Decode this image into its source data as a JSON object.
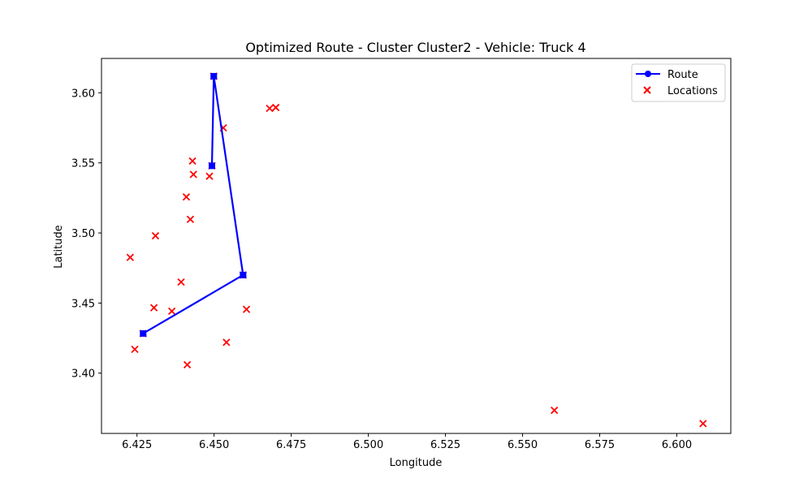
{
  "chart_data": {
    "type": "scatter",
    "title": "Optimized Route - Cluster Cluster2 - Vehicle: Truck 4",
    "xlabel": "Longitude",
    "ylabel": "Latitude",
    "xlim": [
      6.4135,
      6.6175
    ],
    "ylim": [
      3.357,
      3.6245
    ],
    "xticks": [
      "6.425",
      "6.450",
      "6.475",
      "6.500",
      "6.525",
      "6.550",
      "6.575",
      "6.600"
    ],
    "yticks": [
      "3.40",
      "3.45",
      "3.50",
      "3.55",
      "3.60"
    ],
    "grid": false,
    "legend_position": "top-right",
    "colors": {
      "route": "#0000ff",
      "locations": "#ff0000"
    },
    "series": [
      {
        "name": "Route",
        "kind": "line",
        "marker": "circle",
        "points": [
          [
            6.4493,
            3.5479
          ],
          [
            6.4499,
            3.6118
          ],
          [
            6.4594,
            3.47
          ],
          [
            6.427,
            3.4283
          ]
        ]
      },
      {
        "name": "Locations",
        "kind": "scatter",
        "marker": "x",
        "points": [
          [
            6.4499,
            3.6118
          ],
          [
            6.468,
            3.5889
          ],
          [
            6.47,
            3.5895
          ],
          [
            6.453,
            3.575
          ],
          [
            6.443,
            3.5513
          ],
          [
            6.4493,
            3.5479
          ],
          [
            6.4433,
            3.5418
          ],
          [
            6.4485,
            3.5405
          ],
          [
            6.441,
            3.5257
          ],
          [
            6.4423,
            3.5097
          ],
          [
            6.431,
            3.498
          ],
          [
            6.4228,
            3.4826
          ],
          [
            6.4594,
            3.47
          ],
          [
            6.4393,
            3.465
          ],
          [
            6.4305,
            3.4467
          ],
          [
            6.4363,
            3.4442
          ],
          [
            6.4605,
            3.4455
          ],
          [
            6.427,
            3.4283
          ],
          [
            6.454,
            3.422
          ],
          [
            6.4243,
            3.417
          ],
          [
            6.4413,
            3.406
          ],
          [
            6.5603,
            3.3735
          ],
          [
            6.6085,
            3.364
          ]
        ]
      }
    ]
  }
}
